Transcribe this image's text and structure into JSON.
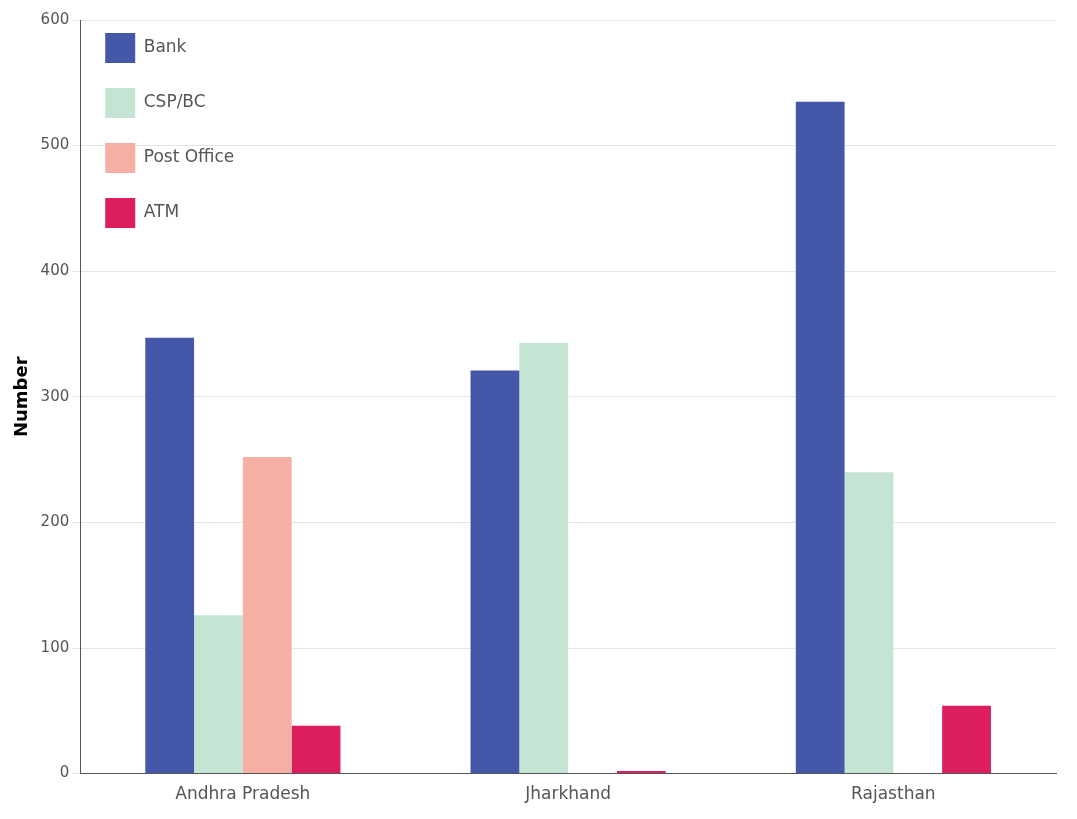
{
  "chart_data": {
    "type": "bar",
    "ylabel": "Number",
    "categories": [
      "Andhra Pradesh",
      "Jharkhand",
      "Rajasthan"
    ],
    "series": [
      {
        "name": "Bank",
        "color": "#4557a8",
        "values": [
          347,
          321,
          535
        ]
      },
      {
        "name": "CSP/BC",
        "color": "#c5e4d4",
        "values": [
          126,
          343,
          240
        ]
      },
      {
        "name": "Post Office",
        "color": "#f5afa3",
        "values": [
          252,
          0,
          0
        ]
      },
      {
        "name": "ATM",
        "color": "#dc1e5c",
        "values": [
          38,
          2,
          54
        ]
      }
    ],
    "ylim": [
      0,
      600
    ],
    "yticks": [
      0,
      100,
      200,
      300,
      400,
      500,
      600
    ],
    "grid": "y",
    "legend": "top left"
  }
}
